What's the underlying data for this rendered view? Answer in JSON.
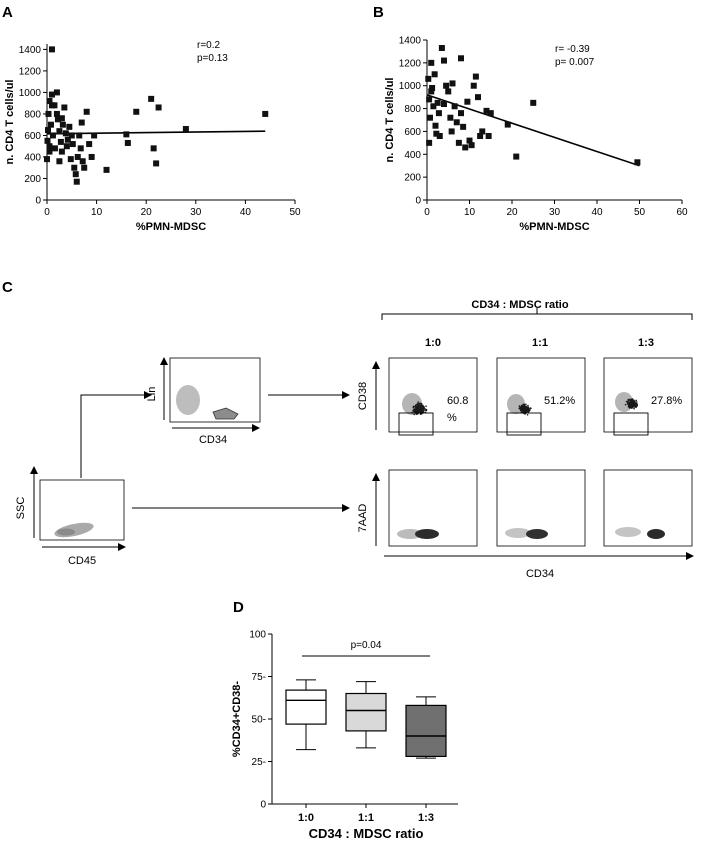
{
  "panels": {
    "A": "A",
    "B": "B",
    "C": "C",
    "D": "D"
  },
  "chart_data": [
    {
      "panel": "A",
      "type": "scatter",
      "xlabel": "%PMN-MDSC",
      "ylabel": "n. CD4 T cells/ul",
      "xlim": [
        0,
        50
      ],
      "ylim": [
        0,
        1450
      ],
      "xticks": [
        0,
        10,
        20,
        30,
        40,
        50
      ],
      "yticks": [
        0,
        200,
        400,
        600,
        800,
        1000,
        1200,
        1400
      ],
      "stats": [
        "r=0.2",
        "p=0.13"
      ],
      "fit": {
        "x": [
          0,
          44
        ],
        "y": [
          615,
          640
        ]
      },
      "points": [
        [
          1,
          1400
        ],
        [
          0.5,
          920
        ],
        [
          0.3,
          800
        ],
        [
          0.2,
          650
        ],
        [
          0.1,
          550
        ],
        [
          0,
          380
        ],
        [
          0.8,
          700
        ],
        [
          0.5,
          500
        ],
        [
          1,
          980
        ],
        [
          1.5,
          880
        ],
        [
          1.2,
          600
        ],
        [
          1.6,
          480
        ],
        [
          2,
          1000
        ],
        [
          2.2,
          750
        ],
        [
          2.5,
          640
        ],
        [
          2.8,
          540
        ],
        [
          3,
          450
        ],
        [
          3.2,
          700
        ],
        [
          3.5,
          860
        ],
        [
          3.8,
          620
        ],
        [
          4,
          500
        ],
        [
          4.2,
          560
        ],
        [
          4.5,
          680
        ],
        [
          4.8,
          380
        ],
        [
          5,
          600
        ],
        [
          5.2,
          520
        ],
        [
          5.5,
          300
        ],
        [
          5.8,
          240
        ],
        [
          6,
          170
        ],
        [
          6.2,
          400
        ],
        [
          6.5,
          600
        ],
        [
          6.8,
          480
        ],
        [
          7,
          720
        ],
        [
          7.2,
          360
        ],
        [
          7.5,
          300
        ],
        [
          8,
          820
        ],
        [
          8.5,
          520
        ],
        [
          9,
          400
        ],
        [
          9.5,
          600
        ],
        [
          12,
          280
        ],
        [
          16,
          610
        ],
        [
          16.3,
          530
        ],
        [
          18,
          820
        ],
        [
          21,
          940
        ],
        [
          21.5,
          480
        ],
        [
          22.5,
          860
        ],
        [
          22,
          340
        ],
        [
          28,
          660
        ],
        [
          44,
          800
        ],
        [
          1,
          880
        ],
        [
          2,
          800
        ],
        [
          0.5,
          450
        ],
        [
          2.5,
          360
        ],
        [
          3,
          760
        ]
      ]
    },
    {
      "panel": "B",
      "type": "scatter",
      "xlabel": "%PMN-MDSC",
      "ylabel": "n. CD4 T cells/ul",
      "xlim": [
        0,
        60
      ],
      "ylim": [
        0,
        1400
      ],
      "xticks": [
        0,
        10,
        20,
        30,
        40,
        50,
        60
      ],
      "yticks": [
        0,
        200,
        400,
        600,
        800,
        1000,
        1200,
        1400
      ],
      "stats": [
        "r= -0.39",
        "p= 0.007"
      ],
      "fit": {
        "x": [
          0,
          50
        ],
        "y": [
          920,
          300
        ]
      },
      "points": [
        [
          0.3,
          1060
        ],
        [
          0.5,
          880
        ],
        [
          0.7,
          720
        ],
        [
          0.5,
          500
        ],
        [
          1,
          1200
        ],
        [
          1.2,
          980
        ],
        [
          1.5,
          820
        ],
        [
          1.8,
          1100
        ],
        [
          2,
          650
        ],
        [
          2.2,
          580
        ],
        [
          2.5,
          850
        ],
        [
          2.8,
          760
        ],
        [
          3,
          560
        ],
        [
          3.5,
          1330
        ],
        [
          4,
          840
        ],
        [
          4.5,
          1000
        ],
        [
          5,
          950
        ],
        [
          5.5,
          720
        ],
        [
          5.8,
          600
        ],
        [
          6,
          1020
        ],
        [
          6.5,
          820
        ],
        [
          7,
          680
        ],
        [
          7.5,
          500
        ],
        [
          8,
          760
        ],
        [
          8.5,
          640
        ],
        [
          9,
          460
        ],
        [
          9.5,
          860
        ],
        [
          10,
          520
        ],
        [
          10.5,
          480
        ],
        [
          11,
          1000
        ],
        [
          11.5,
          1080
        ],
        [
          12,
          900
        ],
        [
          12.5,
          560
        ],
        [
          13,
          600
        ],
        [
          14,
          780
        ],
        [
          14.5,
          560
        ],
        [
          15,
          760
        ],
        [
          19,
          660
        ],
        [
          21,
          380
        ],
        [
          25,
          850
        ],
        [
          49.5,
          330
        ],
        [
          1,
          950
        ],
        [
          4,
          1220
        ],
        [
          8,
          1240
        ]
      ]
    },
    {
      "panel": "D",
      "type": "box",
      "ylabel": "%CD34+CD38-",
      "xlabel": "CD34 : MDSC ratio",
      "categories": [
        "1:0",
        "1:1",
        "1:3"
      ],
      "ylim": [
        0,
        100
      ],
      "yticks": [
        0,
        25,
        50,
        75,
        100
      ],
      "ytick_labels": [
        "0",
        "25-",
        "50-",
        "75-",
        "100"
      ],
      "boxes": [
        {
          "whisker_low": 32,
          "q1": 47,
          "median": 61,
          "q3": 67,
          "whisker_high": 73,
          "fill": "#ffffff"
        },
        {
          "whisker_low": 33,
          "q1": 43,
          "median": 55,
          "q3": 65,
          "whisker_high": 72,
          "fill": "#d9d9d9"
        },
        {
          "whisker_low": 27,
          "q1": 28,
          "median": 40,
          "q3": 58,
          "whisker_high": 63,
          "fill": "#707070"
        }
      ],
      "annotation": "p=0.04"
    }
  ],
  "flow": {
    "ratio_header": "CD34 : MDSC ratio",
    "ratios": [
      "1:0",
      "1:1",
      "1:3"
    ],
    "gate1": {
      "x": "CD45",
      "y": "SSC"
    },
    "gate2": {
      "x": "CD34",
      "y": "Lin"
    },
    "row1_y": "CD38",
    "row2_y": "7AAD",
    "bottom_x": "CD34",
    "percents": [
      {
        "a": "60.8",
        "b": "%"
      },
      {
        "a": "51.2%",
        "b": ""
      },
      {
        "a": "27.8%",
        "b": ""
      }
    ]
  },
  "colors": {
    "marker": "#111111",
    "line": "#000000",
    "dots": "#1a1a1a",
    "grey": "#b0b0b0"
  }
}
